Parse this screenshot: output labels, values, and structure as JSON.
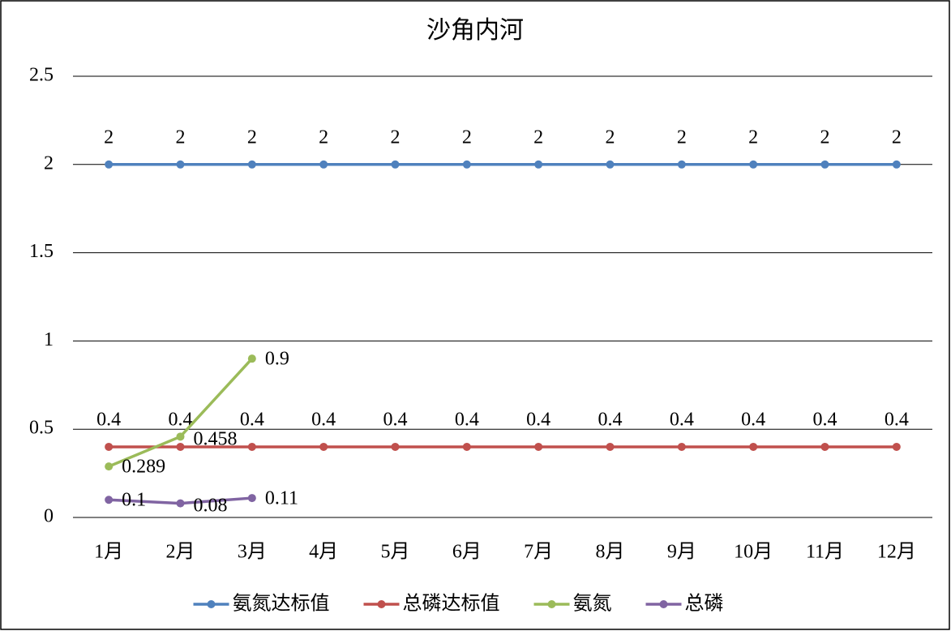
{
  "chart_data": {
    "type": "line",
    "title": "沙角内河",
    "categories": [
      "1月",
      "2月",
      "3月",
      "4月",
      "5月",
      "6月",
      "7月",
      "8月",
      "9月",
      "10月",
      "11月",
      "12月"
    ],
    "series": [
      {
        "name": "氨氮达标值",
        "color": "#4f81bd",
        "values": [
          2,
          2,
          2,
          2,
          2,
          2,
          2,
          2,
          2,
          2,
          2,
          2
        ]
      },
      {
        "name": "总磷达标值",
        "color": "#c0504d",
        "values": [
          0.4,
          0.4,
          0.4,
          0.4,
          0.4,
          0.4,
          0.4,
          0.4,
          0.4,
          0.4,
          0.4,
          0.4
        ]
      },
      {
        "name": "氨氮",
        "color": "#9bbb59",
        "values": [
          0.289,
          0.458,
          0.9,
          null,
          null,
          null,
          null,
          null,
          null,
          null,
          null,
          null
        ]
      },
      {
        "name": "总磷",
        "color": "#8064a2",
        "values": [
          0.1,
          0.08,
          0.11,
          null,
          null,
          null,
          null,
          null,
          null,
          null,
          null,
          null
        ]
      }
    ],
    "ylim": [
      0,
      2.5
    ],
    "yticks": [
      0,
      0.5,
      1,
      1.5,
      2,
      2.5
    ],
    "grid": true,
    "legend": "bottom"
  }
}
